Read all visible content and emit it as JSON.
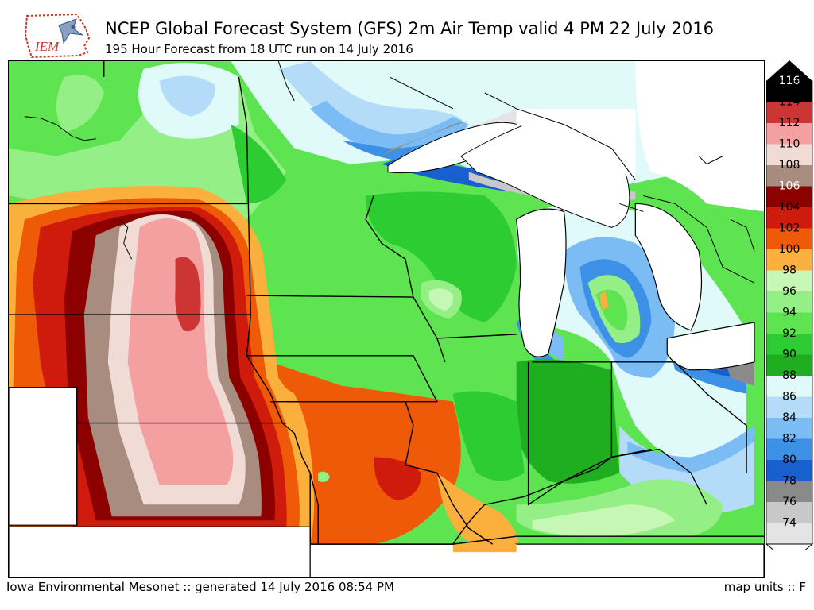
{
  "logo": {
    "text": "IEM"
  },
  "header": {
    "title": "NCEP Global Forecast System (GFS) 2m Air Temp valid 4 PM 22 July 2016",
    "subtitle": "195 Hour Forecast from 18 UTC run on 14 July 2016"
  },
  "footer": {
    "credit": "Iowa Environmental Mesonet :: generated 14 July 2016 08:54 PM",
    "units": "map units :: F"
  },
  "legend": {
    "levels": [
      {
        "label": "116",
        "color": "#000000"
      },
      {
        "label": "114",
        "color": "#cd3434"
      },
      {
        "label": "112",
        "color": "#f4a0a0"
      },
      {
        "label": "110",
        "color": "#f0dcd4"
      },
      {
        "label": "108",
        "color": "#a78c7f"
      },
      {
        "label": "106",
        "color": "#8c0000"
      },
      {
        "label": "104",
        "color": "#cf1b0b"
      },
      {
        "label": "102",
        "color": "#ef5a08"
      },
      {
        "label": "100",
        "color": "#fbb03e"
      },
      {
        "label": "98",
        "color": "#c6f7b4"
      },
      {
        "label": "96",
        "color": "#94ef87"
      },
      {
        "label": "94",
        "color": "#5ee451"
      },
      {
        "label": "92",
        "color": "#2ecc33"
      },
      {
        "label": "90",
        "color": "#1fae1f"
      },
      {
        "label": "88",
        "color": "#e0fafa"
      },
      {
        "label": "86",
        "color": "#b4dcf8"
      },
      {
        "label": "84",
        "color": "#7cbcf4"
      },
      {
        "label": "82",
        "color": "#3c90e6"
      },
      {
        "label": "80",
        "color": "#1a5fd0"
      },
      {
        "label": "78",
        "color": "#8a8a8a"
      },
      {
        "label": "76",
        "color": "#c8c8c8"
      },
      {
        "label": "74",
        "color": "#e4e4e4"
      }
    ]
  }
}
